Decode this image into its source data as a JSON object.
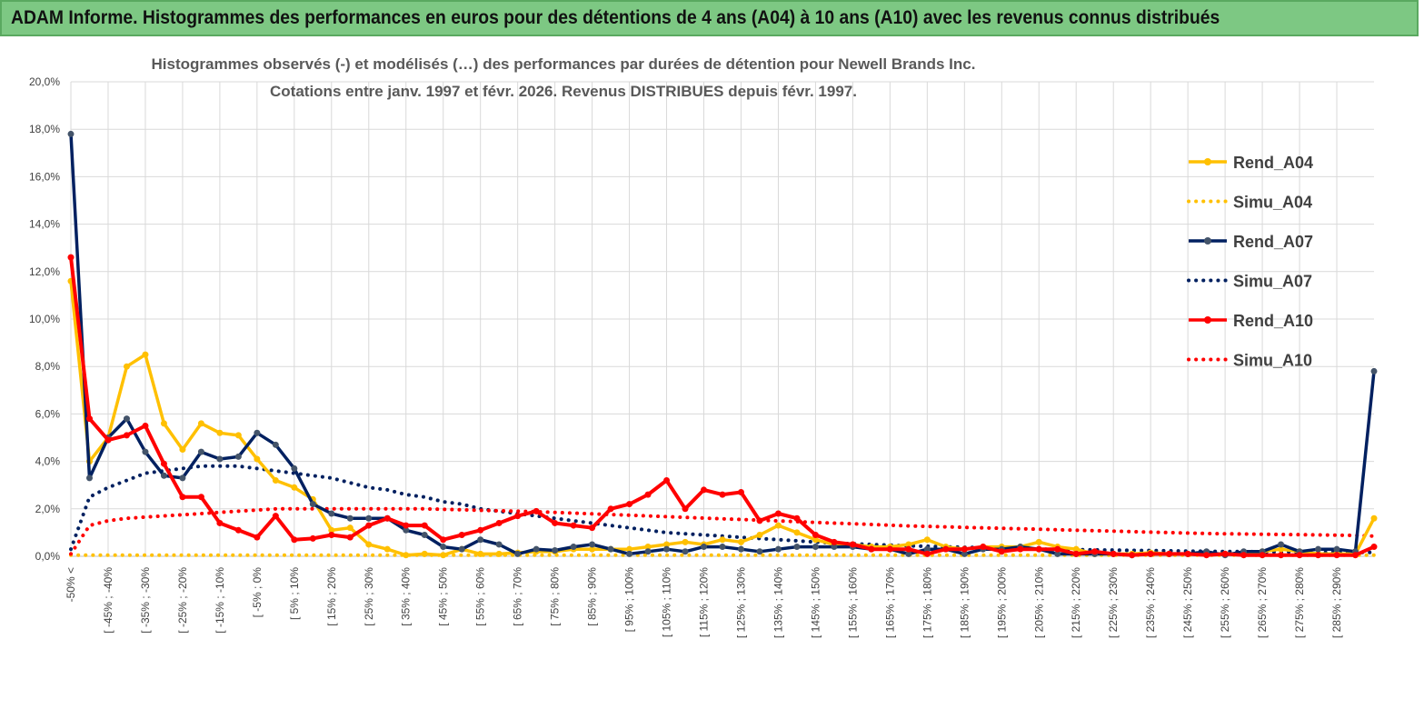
{
  "header": {
    "title": "ADAM Informe. Histogrammes des performances en euros pour des détentions de 4 ans (A04) à 10 ans (A10) avec les revenus connus distribués"
  },
  "colors": {
    "banner": "#7dc883",
    "A04": "#ffc000",
    "A07": "#002060",
    "A10": "#ff0000",
    "grid": "#d9d9d9"
  },
  "chart_data": {
    "type": "line",
    "title": "Histogrammes observés (-) et modélisés (…) des performances par durées de détention pour Newell Brands Inc.",
    "subtitle": "Cotations entre janv. 1997 et févr. 2026. Revenus DISTRIBUES depuis févr. 1997.",
    "ylim": [
      0,
      20
    ],
    "y_ticks": [
      "0,0%",
      "2,0%",
      "4,0%",
      "6,0%",
      "8,0%",
      "10,0%",
      "12,0%",
      "14,0%",
      "16,0%",
      "18,0%",
      "20,0%"
    ],
    "x_tick_labels": [
      "-50% <",
      "[ -45% ; -40%",
      "[ -35% ; -30%",
      "[ -25% ; -20%",
      "[ -15% ; -10%",
      "[ -5% ; 0%",
      "[ 5% ; 10%",
      "[ 15% ; 20%",
      "[ 25% ; 30%",
      "[ 35% ; 40%",
      "[ 45% ; 50%",
      "[ 55% ; 60%",
      "[ 65% ; 70%",
      "[ 75% ; 80%",
      "[ 85% ; 90%",
      "[ 95% ; 100%",
      "[ 105% ; 110%",
      "[ 115% ; 120%",
      "[ 125% ; 130%",
      "[ 135% ; 140%",
      "[ 145% ; 150%",
      "[ 155% ; 160%",
      "[ 165% ; 170%",
      "[ 175% ; 180%",
      "[ 185% ; 190%",
      "[ 195% ; 200%",
      "[ 205% ; 210%",
      "[ 215% ; 220%",
      "[ 225% ; 230%",
      "[ 235% ; 240%",
      "[ 245% ; 250%",
      "[ 255% ; 260%",
      "[ 265% ; 270%",
      "[ 275% ; 280%",
      "[ 285% ; 290%"
    ],
    "legend_position": "right",
    "grid": true,
    "series": [
      {
        "name": "Rend_A04",
        "style": "solid",
        "color": "#ffc000",
        "values": [
          11.6,
          4.0,
          5.0,
          8.0,
          8.5,
          5.6,
          4.5,
          5.6,
          5.2,
          5.1,
          4.1,
          3.2,
          2.9,
          2.4,
          1.1,
          1.2,
          0.5,
          0.3,
          0.05,
          0.1,
          0.05,
          0.3,
          0.1,
          0.1,
          0.15,
          0.2,
          0.2,
          0.3,
          0.3,
          0.3,
          0.3,
          0.4,
          0.5,
          0.6,
          0.5,
          0.7,
          0.6,
          0.9,
          1.3,
          1.0,
          0.7,
          0.5,
          0.5,
          0.4,
          0.4,
          0.5,
          0.7,
          0.4,
          0.3,
          0.4,
          0.4,
          0.4,
          0.6,
          0.4,
          0.3,
          0.1,
          0.1,
          0.1,
          0.15,
          0.1,
          0.1,
          0.1,
          0.1,
          0.1,
          0.2,
          0.3,
          0.2,
          0.1,
          0.1,
          0.1,
          1.6
        ]
      },
      {
        "name": "Simu_A04",
        "style": "dotted",
        "color": "#ffc000",
        "values": [
          0.05,
          0.05,
          0.05,
          0.05,
          0.05,
          0.05,
          0.05,
          0.05,
          0.05,
          0.05,
          0.05,
          0.05,
          0.05,
          0.05,
          0.05,
          0.05,
          0.05,
          0.05,
          0.05,
          0.05,
          0.05,
          0.05,
          0.05,
          0.05,
          0.05,
          0.05,
          0.05,
          0.05,
          0.05,
          0.05,
          0.05,
          0.05,
          0.05,
          0.05,
          0.05,
          0.05,
          0.05,
          0.05,
          0.05,
          0.05,
          0.05,
          0.05,
          0.05,
          0.05,
          0.05,
          0.05,
          0.05,
          0.05,
          0.05,
          0.05,
          0.05,
          0.05,
          0.05,
          0.05,
          0.05,
          0.05,
          0.05,
          0.05,
          0.05,
          0.05,
          0.05,
          0.05,
          0.05,
          0.05,
          0.05,
          0.05,
          0.05,
          0.05,
          0.05,
          0.05,
          0.05
        ]
      },
      {
        "name": "Rend_A07",
        "style": "solid",
        "color": "#002060",
        "values": [
          17.8,
          3.3,
          5.0,
          5.8,
          4.4,
          3.4,
          3.3,
          4.4,
          4.1,
          4.2,
          5.2,
          4.7,
          3.7,
          2.2,
          1.8,
          1.6,
          1.6,
          1.6,
          1.1,
          0.9,
          0.4,
          0.3,
          0.7,
          0.5,
          0.1,
          0.3,
          0.25,
          0.4,
          0.5,
          0.3,
          0.1,
          0.2,
          0.3,
          0.2,
          0.4,
          0.4,
          0.3,
          0.2,
          0.3,
          0.4,
          0.4,
          0.4,
          0.4,
          0.3,
          0.3,
          0.1,
          0.3,
          0.3,
          0.1,
          0.3,
          0.3,
          0.4,
          0.3,
          0.1,
          0.1,
          0.1,
          0.1,
          0.05,
          0.1,
          0.1,
          0.1,
          0.2,
          0.05,
          0.2,
          0.2,
          0.5,
          0.2,
          0.3,
          0.3,
          0.2,
          7.8
        ]
      },
      {
        "name": "Simu_A07",
        "style": "dotted",
        "color": "#002060",
        "values": [
          0.3,
          2.5,
          2.9,
          3.2,
          3.5,
          3.6,
          3.7,
          3.8,
          3.8,
          3.8,
          3.7,
          3.6,
          3.5,
          3.4,
          3.3,
          3.1,
          2.9,
          2.8,
          2.6,
          2.5,
          2.3,
          2.2,
          2.0,
          1.9,
          1.8,
          1.7,
          1.6,
          1.5,
          1.4,
          1.3,
          1.2,
          1.1,
          1.0,
          0.95,
          0.9,
          0.85,
          0.8,
          0.75,
          0.7,
          0.65,
          0.6,
          0.56,
          0.53,
          0.5,
          0.47,
          0.44,
          0.42,
          0.4,
          0.38,
          0.36,
          0.34,
          0.32,
          0.3,
          0.29,
          0.28,
          0.27,
          0.26,
          0.25,
          0.24,
          0.23,
          0.22,
          0.21,
          0.2,
          0.2,
          0.19,
          0.18,
          0.18,
          0.17,
          0.17,
          0.16,
          0.16
        ]
      },
      {
        "name": "Rend_A10",
        "style": "solid",
        "color": "#ff0000",
        "values": [
          12.6,
          5.8,
          4.9,
          5.1,
          5.5,
          3.9,
          2.5,
          2.5,
          1.4,
          1.1,
          0.8,
          1.7,
          0.7,
          0.75,
          0.9,
          0.8,
          1.3,
          1.6,
          1.3,
          1.3,
          0.7,
          0.9,
          1.1,
          1.4,
          1.7,
          1.9,
          1.4,
          1.3,
          1.2,
          2.0,
          2.2,
          2.6,
          3.2,
          2.0,
          2.8,
          2.6,
          2.7,
          1.5,
          1.8,
          1.6,
          0.9,
          0.6,
          0.5,
          0.3,
          0.3,
          0.3,
          0.1,
          0.3,
          0.3,
          0.4,
          0.2,
          0.3,
          0.3,
          0.3,
          0.1,
          0.2,
          0.1,
          0.05,
          0.1,
          0.1,
          0.1,
          0.05,
          0.1,
          0.05,
          0.05,
          0.05,
          0.05,
          0.05,
          0.05,
          0.05,
          0.4
        ]
      },
      {
        "name": "Simu_A10",
        "style": "dotted",
        "color": "#ff0000",
        "values": [
          0.1,
          1.3,
          1.5,
          1.6,
          1.65,
          1.7,
          1.75,
          1.8,
          1.85,
          1.9,
          1.95,
          2.0,
          2.0,
          2.0,
          2.0,
          2.0,
          2.0,
          2.0,
          2.0,
          2.0,
          1.98,
          1.96,
          1.94,
          1.92,
          1.9,
          1.88,
          1.85,
          1.82,
          1.79,
          1.76,
          1.73,
          1.7,
          1.67,
          1.64,
          1.61,
          1.58,
          1.55,
          1.52,
          1.49,
          1.46,
          1.43,
          1.4,
          1.37,
          1.34,
          1.31,
          1.28,
          1.26,
          1.24,
          1.22,
          1.2,
          1.18,
          1.16,
          1.14,
          1.12,
          1.1,
          1.08,
          1.06,
          1.04,
          1.02,
          1.0,
          0.98,
          0.96,
          0.95,
          0.94,
          0.93,
          0.92,
          0.91,
          0.9,
          0.89,
          0.88,
          0.85
        ]
      }
    ]
  }
}
